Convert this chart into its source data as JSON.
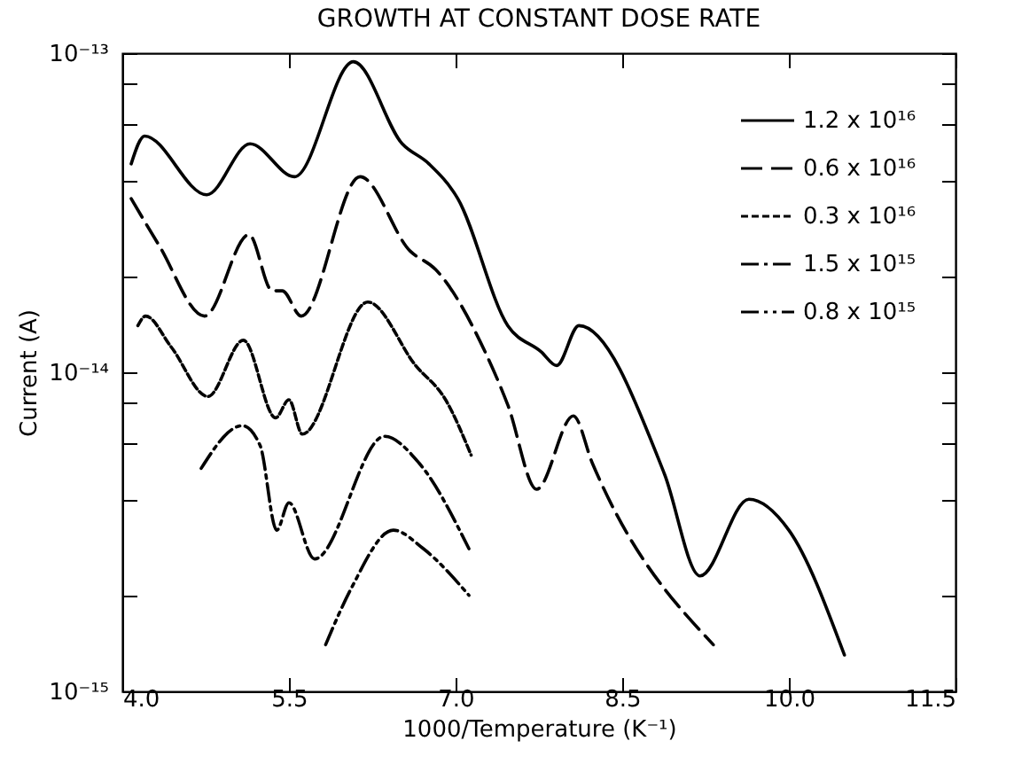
{
  "chart_data": {
    "type": "line",
    "title": "GROWTH AT CONSTANT DOSE RATE",
    "xlabel": "1000/Temperature (K⁻¹)",
    "ylabel": "Current (A)",
    "log": "y",
    "legend": "top right",
    "grid": false,
    "xlim": [
      4.0,
      11.5
    ],
    "xticks": [
      {
        "value": 4.0,
        "label": "4.0"
      },
      5.5,
      {
        "value": 7.0,
        "label": "7.0"
      },
      8.5,
      {
        "value": 10.0,
        "label": "10.0"
      },
      11.5
    ],
    "ylim": [
      1e-15,
      1e-13
    ],
    "yticks": [
      {
        "value": 1e-15,
        "label": "10⁻¹⁵"
      },
      {
        "value": 2e-15,
        "label": null
      },
      {
        "value": 4e-15,
        "label": null
      },
      {
        "value": 6e-15,
        "label": null
      },
      {
        "value": 8e-15,
        "label": null
      },
      {
        "value": 1e-14,
        "label": "10⁻¹⁴"
      },
      {
        "value": 2e-14,
        "label": null
      },
      {
        "value": 4e-14,
        "label": null
      },
      {
        "value": 6e-14,
        "label": null
      },
      {
        "value": 8e-14,
        "label": null
      },
      {
        "value": 1e-13,
        "label": "10⁻¹³"
      }
    ],
    "series": [
      {
        "name": "1.2 x 10¹⁶",
        "color": "#000000",
        "line_style": "solid",
        "x": [
          4.08,
          4.2,
          4.76,
          5.15,
          5.55,
          6.08,
          6.52,
          6.76,
          7.02,
          7.47,
          7.77,
          7.91,
          8.11,
          8.88,
          9.2,
          9.64,
          10.0,
          10.5
        ],
        "values": [
          4.5e-14,
          5.5e-14,
          3.6e-14,
          5.2e-14,
          4.1e-14,
          9.4e-14,
          5.2e-14,
          4.5e-14,
          3.5e-14,
          1.4e-14,
          1.16e-14,
          1.05e-14,
          1.4e-14,
          4.8e-15,
          2.3e-15,
          4e-15,
          3.2e-15,
          1.3e-15
        ]
      },
      {
        "name": "0.6 x 10¹⁶",
        "color": "#000000",
        "line_style": "dashed",
        "x": [
          4.08,
          4.33,
          4.74,
          5.14,
          5.35,
          5.44,
          5.61,
          6.14,
          6.59,
          6.82,
          7.27,
          7.47,
          7.73,
          8.06,
          8.23,
          9.32
        ],
        "values": [
          3.5e-14,
          2.5e-14,
          1.5e-14,
          2.7e-14,
          1.8e-14,
          1.8e-14,
          1.5e-14,
          4.1e-14,
          2.4e-14,
          2.1e-14,
          1.15e-14,
          7.9e-15,
          4.3e-15,
          7.3e-15,
          5.2e-15,
          1.4e-15
        ]
      },
      {
        "name": "0.3 x 10¹⁶",
        "color": "#000000",
        "line_style": "dotted",
        "x": [
          4.14,
          4.21,
          4.44,
          4.77,
          5.09,
          5.38,
          5.5,
          5.62,
          6.21,
          6.64,
          6.91,
          7.14
        ],
        "values": [
          1.4e-14,
          1.5e-14,
          1.2e-14,
          8.4e-15,
          1.26e-14,
          7.2e-15,
          8.2e-15,
          6.4e-15,
          1.66e-14,
          1.05e-14,
          8.2e-15,
          5.5e-15
        ]
      },
      {
        "name": "1.5 x 10¹⁵",
        "color": "#000000",
        "line_style": "dashdot",
        "x": [
          4.71,
          5.08,
          5.24,
          5.39,
          5.5,
          5.73,
          6.36,
          6.67,
          7.12
        ],
        "values": [
          5e-15,
          6.8e-15,
          5.9e-15,
          3.2e-15,
          3.9e-15,
          2.6e-15,
          6.3e-15,
          5.2e-15,
          2.8e-15
        ]
      },
      {
        "name": "0.8 x 10¹⁵",
        "color": "#000000",
        "line_style": "dashdotdot",
        "x": [
          5.83,
          6.06,
          6.44,
          6.71,
          7.12
        ],
        "values": [
          1.4e-15,
          2.1e-15,
          3.2e-15,
          2.8e-15,
          2e-15
        ]
      }
    ]
  }
}
